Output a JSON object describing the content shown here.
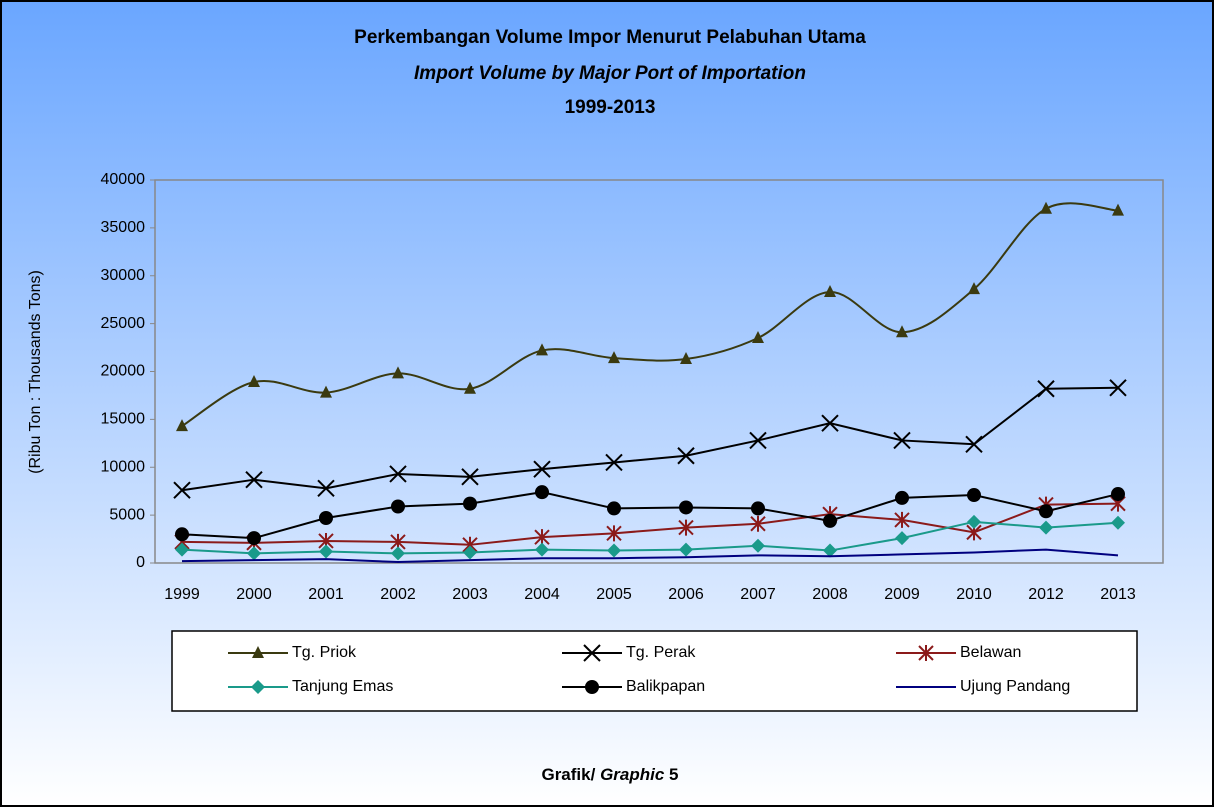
{
  "chart_data": {
    "type": "line",
    "title": "Perkembangan Volume Impor Menurut Pelabuhan Utama",
    "subtitle": "Import Volume by Major Port of Importation",
    "period": "1999-2013",
    "ylabel": "(Ribu Ton : Thousands Tons)",
    "caption": {
      "label": "Grafik/",
      "emphasis": "Graphic",
      "number": "5"
    },
    "categories": [
      "1999",
      "2000",
      "2001",
      "2002",
      "2003",
      "2004",
      "2005",
      "2006",
      "2007",
      "2008",
      "2009",
      "2010",
      "2012",
      "2013"
    ],
    "ylim": [
      0,
      40000
    ],
    "yticks": [
      0,
      5000,
      10000,
      15000,
      20000,
      25000,
      30000,
      35000,
      40000
    ],
    "grid": false,
    "series": [
      {
        "name": "Tg. Priok",
        "color": "#3a3a10",
        "marker": "triangle",
        "smooth": true,
        "values": [
          14300,
          18900,
          17800,
          19800,
          18200,
          22200,
          21400,
          21300,
          23500,
          28300,
          24100,
          28600,
          37000,
          36800
        ]
      },
      {
        "name": "Tg. Perak",
        "color": "#000000",
        "marker": "x",
        "values": [
          7600,
          8700,
          7800,
          9300,
          9000,
          9800,
          10500,
          11200,
          12800,
          14600,
          12800,
          12400,
          18200,
          18300
        ]
      },
      {
        "name": "Belawan",
        "color": "#8b1a1a",
        "marker": "asterisk",
        "values": [
          2200,
          2100,
          2300,
          2200,
          1900,
          2700,
          3100,
          3700,
          4100,
          5100,
          4500,
          3200,
          6100,
          6200
        ]
      },
      {
        "name": "Tanjung Emas",
        "color": "#1a9a8a",
        "marker": "diamond",
        "values": [
          1400,
          1000,
          1200,
          1000,
          1100,
          1400,
          1300,
          1400,
          1800,
          1300,
          2600,
          4300,
          3700,
          4200
        ]
      },
      {
        "name": "Balikpapan",
        "color": "#000000",
        "marker": "circle",
        "values": [
          3000,
          2600,
          4700,
          5900,
          6200,
          7400,
          5700,
          5800,
          5700,
          4400,
          6800,
          7100,
          5400,
          7200
        ]
      },
      {
        "name": "Ujung Pandang",
        "color": "#00007f",
        "marker": "none",
        "values": [
          200,
          300,
          400,
          100,
          300,
          500,
          500,
          600,
          800,
          700,
          900,
          1100,
          1400,
          800
        ]
      }
    ]
  }
}
